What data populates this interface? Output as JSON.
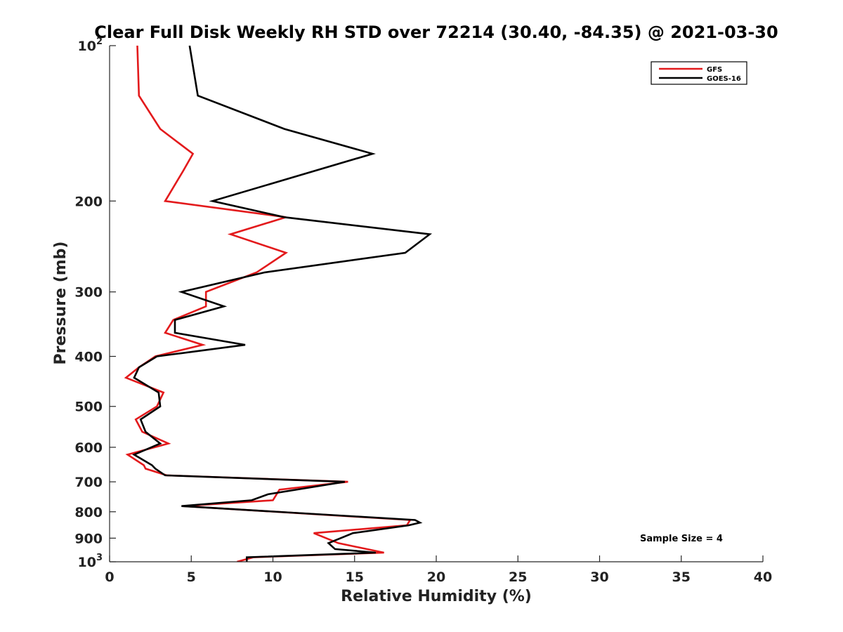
{
  "chart_data": {
    "type": "line",
    "title": "Clear Full Disk Weekly RH STD over 72214 (30.40, -84.35) @ 2021-03-30",
    "xlabel": "Relative Humidity (%)",
    "ylabel": "Pressure (mb)",
    "xlim": [
      0,
      40
    ],
    "ylim": [
      100,
      1000
    ],
    "yscale": "log",
    "yreversed": true,
    "grid": false,
    "legend_position": "top-right",
    "x_ticks": [
      0,
      5,
      10,
      15,
      20,
      25,
      30,
      35,
      40
    ],
    "x_tick_labels": [
      "0",
      "5",
      "10",
      "15",
      "20",
      "25",
      "30",
      "35",
      "40"
    ],
    "y_ticks": [
      100,
      200,
      300,
      400,
      500,
      600,
      700,
      800,
      900,
      1000
    ],
    "y_tick_labels": [
      {
        "base": "10",
        "exp": "2"
      },
      {
        "base": "200",
        "exp": ""
      },
      {
        "base": "300",
        "exp": ""
      },
      {
        "base": "400",
        "exp": ""
      },
      {
        "base": "500",
        "exp": ""
      },
      {
        "base": "600",
        "exp": ""
      },
      {
        "base": "700",
        "exp": ""
      },
      {
        "base": "800",
        "exp": ""
      },
      {
        "base": "900",
        "exp": ""
      },
      {
        "base": "10",
        "exp": "3"
      }
    ],
    "annotation": "Sample Size = 4",
    "series": [
      {
        "name": "GFS",
        "color": "#e31a1c",
        "points": [
          [
            1.7,
            100
          ],
          [
            1.8,
            125
          ],
          [
            3.1,
            145
          ],
          [
            5.1,
            162
          ],
          [
            4.5,
            175
          ],
          [
            3.4,
            200
          ],
          [
            10.8,
            215
          ],
          [
            7.4,
            232
          ],
          [
            10.8,
            252
          ],
          [
            9.0,
            275
          ],
          [
            5.9,
            300
          ],
          [
            5.9,
            320
          ],
          [
            3.9,
            340
          ],
          [
            3.4,
            360
          ],
          [
            5.7,
            380
          ],
          [
            2.8,
            400
          ],
          [
            1.8,
            420
          ],
          [
            1.0,
            440
          ],
          [
            3.3,
            470
          ],
          [
            2.9,
            500
          ],
          [
            1.6,
            530
          ],
          [
            2.0,
            560
          ],
          [
            3.6,
            590
          ],
          [
            1.1,
            620
          ],
          [
            2.1,
            650
          ],
          [
            2.2,
            660
          ],
          [
            3.5,
            680
          ],
          [
            14.6,
            700
          ],
          [
            10.4,
            725
          ],
          [
            10.0,
            760
          ],
          [
            4.5,
            780
          ],
          [
            18.4,
            830
          ],
          [
            18.2,
            850
          ],
          [
            12.5,
            880
          ],
          [
            14.0,
            920
          ],
          [
            16.8,
            960
          ],
          [
            8.8,
            980
          ],
          [
            7.8,
            1000
          ]
        ]
      },
      {
        "name": "GOES-16",
        "color": "#000000",
        "points": [
          [
            4.9,
            100
          ],
          [
            5.4,
            125
          ],
          [
            10.7,
            145
          ],
          [
            16.1,
            162
          ],
          [
            6.3,
            200
          ],
          [
            10.7,
            215
          ],
          [
            19.6,
            232
          ],
          [
            18.1,
            252
          ],
          [
            9.5,
            275
          ],
          [
            4.4,
            300
          ],
          [
            7.0,
            320
          ],
          [
            4.0,
            340
          ],
          [
            4.0,
            360
          ],
          [
            8.3,
            380
          ],
          [
            2.9,
            400
          ],
          [
            1.8,
            420
          ],
          [
            1.5,
            440
          ],
          [
            3.0,
            470
          ],
          [
            3.1,
            500
          ],
          [
            1.9,
            530
          ],
          [
            2.2,
            560
          ],
          [
            3.1,
            590
          ],
          [
            1.5,
            620
          ],
          [
            2.6,
            650
          ],
          [
            2.8,
            660
          ],
          [
            3.4,
            680
          ],
          [
            14.4,
            700
          ],
          [
            9.7,
            740
          ],
          [
            8.7,
            760
          ],
          [
            4.4,
            780
          ],
          [
            18.7,
            830
          ],
          [
            19.0,
            840
          ],
          [
            18.3,
            850
          ],
          [
            14.9,
            880
          ],
          [
            13.4,
            920
          ],
          [
            13.8,
            945
          ],
          [
            16.3,
            960
          ],
          [
            8.4,
            980
          ],
          [
            8.4,
            1000
          ]
        ]
      }
    ]
  }
}
